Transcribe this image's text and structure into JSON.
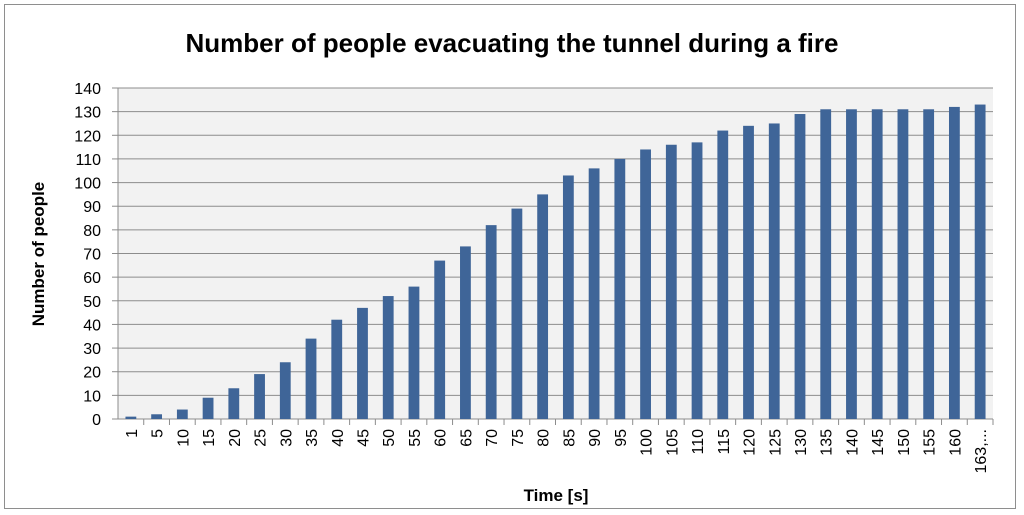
{
  "chart_data": {
    "type": "bar",
    "title": "Number of people evacuating the tunnel during a fire",
    "xlabel": "Time [s]",
    "ylabel": "Number of people",
    "categories": [
      "1",
      "5",
      "10",
      "15",
      "20",
      "25",
      "30",
      "35",
      "40",
      "45",
      "50",
      "55",
      "60",
      "65",
      "70",
      "75",
      "80",
      "85",
      "90",
      "95",
      "100",
      "105",
      "110",
      "115",
      "120",
      "125",
      "130",
      "135",
      "140",
      "145",
      "150",
      "155",
      "160",
      "163,..."
    ],
    "values": [
      1,
      2,
      4,
      9,
      13,
      19,
      24,
      34,
      42,
      47,
      52,
      56,
      67,
      73,
      82,
      89,
      95,
      103,
      106,
      110,
      114,
      116,
      117,
      122,
      124,
      125,
      129,
      131,
      131,
      131,
      131,
      131,
      132,
      133
    ],
    "ylim": [
      0,
      140
    ],
    "yticks": [
      0,
      10,
      20,
      30,
      40,
      50,
      60,
      70,
      80,
      90,
      100,
      110,
      120,
      130,
      140
    ],
    "grid": "horizontal",
    "legend": "none",
    "colors": {
      "bar": "#3f6598",
      "plot_background": "#f2f2f2",
      "gridline": "#8c8c8c",
      "axis": "#8c8c8c"
    }
  }
}
